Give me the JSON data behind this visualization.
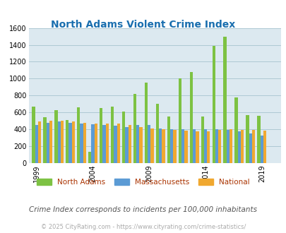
{
  "title": "North Adams Violent Crime Index",
  "title_color": "#1a6faf",
  "plot_bg_color": "#dce9f0",
  "fig_bg_color": "#ffffff",
  "ylim": [
    0,
    1600
  ],
  "yticks": [
    0,
    200,
    400,
    600,
    800,
    1000,
    1200,
    1400,
    1600
  ],
  "years": [
    1999,
    2000,
    2001,
    2002,
    2003,
    2004,
    2005,
    2006,
    2007,
    2008,
    2009,
    2010,
    2011,
    2012,
    2013,
    2014,
    2015,
    2016,
    2017,
    2018,
    2019,
    2020
  ],
  "xtick_years": [
    1999,
    2004,
    2009,
    2014,
    2019
  ],
  "north_adams": [
    670,
    540,
    630,
    510,
    660,
    130,
    650,
    670,
    610,
    820,
    950,
    700,
    550,
    1000,
    1080,
    550,
    1390,
    1500,
    780,
    570,
    560,
    0
  ],
  "massachusetts": [
    450,
    480,
    490,
    480,
    470,
    460,
    450,
    440,
    430,
    450,
    450,
    410,
    400,
    400,
    400,
    400,
    400,
    390,
    380,
    350,
    330,
    0
  ],
  "national": [
    490,
    500,
    500,
    490,
    480,
    465,
    470,
    465,
    450,
    430,
    410,
    400,
    390,
    385,
    380,
    380,
    395,
    400,
    395,
    395,
    385,
    0
  ],
  "north_adams_color": "#7dc243",
  "massachusetts_color": "#5b9bd5",
  "national_color": "#f0a830",
  "bar_width": 0.27,
  "legend_labels": [
    "North Adams",
    "Massachusetts",
    "National"
  ],
  "legend_label_color": "#aa3300",
  "footnote": "Crime Index corresponds to incidents per 100,000 inhabitants",
  "footnote2": "© 2025 CityRating.com - https://www.cityrating.com/crime-statistics/",
  "footnote_color": "#555555",
  "footnote2_color": "#aaaaaa",
  "grid_color": "#aec8d4"
}
